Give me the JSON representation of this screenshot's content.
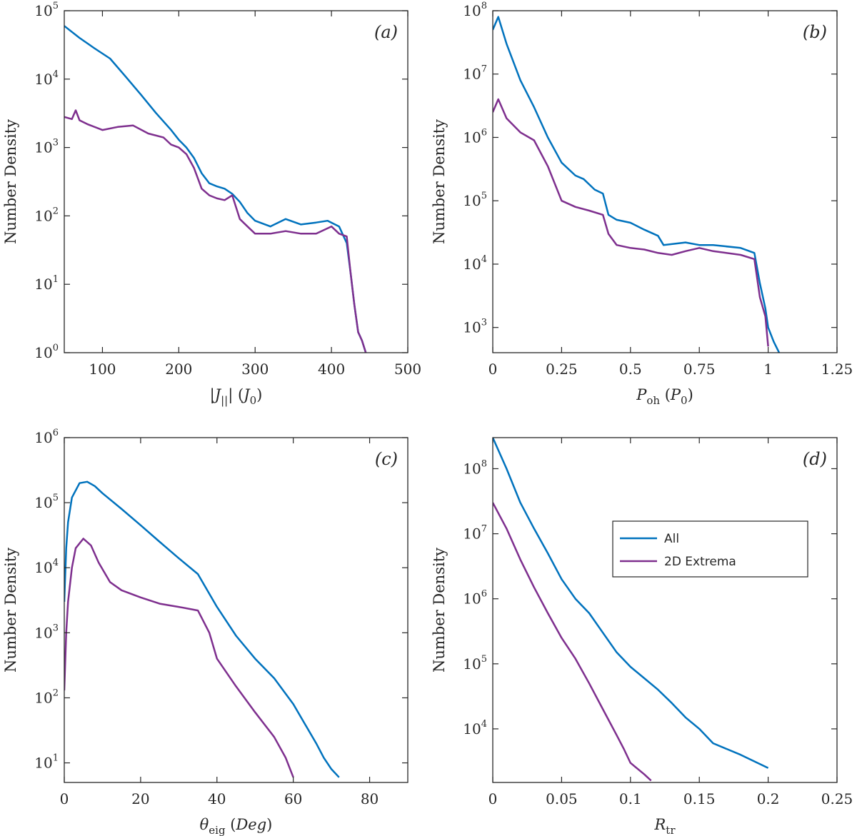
{
  "colors": {
    "all": "#0072bd",
    "extrema": "#7e2f8e",
    "axis": "#262626"
  },
  "legend": {
    "location": "upper-right of panel d",
    "entries": [
      "All",
      "2D Extrema"
    ]
  },
  "chart_data": [
    {
      "panel": "(a)",
      "type": "line",
      "ylabel": "Number Density",
      "xlabel_math": "|J_||| (J_0)",
      "xscale": "linear",
      "yscale": "log",
      "xlim": [
        50,
        500
      ],
      "ylim": [
        1,
        100000
      ],
      "xticks": [
        100,
        200,
        300,
        400,
        500
      ],
      "xtick_labels": [
        "100",
        "200",
        "300",
        "400",
        "500"
      ],
      "yticks": [
        1,
        10,
        100,
        1000,
        10000,
        100000
      ],
      "ytick_exponents": [
        "0",
        "1",
        "2",
        "3",
        "4",
        "5"
      ],
      "series": [
        {
          "name": "All",
          "x": [
            50,
            70,
            90,
            110,
            130,
            150,
            170,
            190,
            200,
            210,
            220,
            230,
            240,
            250,
            260,
            270,
            280,
            290,
            300,
            320,
            340,
            360,
            380,
            395,
            410,
            420,
            425,
            430,
            435,
            440,
            445
          ],
          "y": [
            60000,
            40000,
            28000,
            20000,
            11000,
            6000,
            3200,
            1800,
            1300,
            1000,
            700,
            420,
            300,
            270,
            250,
            210,
            160,
            110,
            85,
            70,
            90,
            75,
            80,
            85,
            70,
            40,
            15,
            5,
            2,
            1.5,
            1
          ]
        },
        {
          "name": "2D Extrema",
          "x": [
            50,
            60,
            65,
            70,
            80,
            100,
            120,
            140,
            160,
            180,
            190,
            200,
            210,
            220,
            230,
            240,
            250,
            260,
            270,
            280,
            290,
            300,
            320,
            340,
            360,
            380,
            400,
            410,
            420,
            425,
            430,
            435,
            440,
            445
          ],
          "y": [
            2800,
            2600,
            3500,
            2500,
            2200,
            1800,
            2000,
            2100,
            1600,
            1400,
            1100,
            1000,
            800,
            500,
            250,
            200,
            180,
            170,
            200,
            90,
            70,
            55,
            55,
            60,
            55,
            55,
            70,
            55,
            50,
            15,
            5,
            2,
            1.5,
            1
          ]
        }
      ]
    },
    {
      "panel": "(b)",
      "type": "line",
      "ylabel": "Number Density",
      "xlabel_math": "P_oh (P_0)",
      "xscale": "linear",
      "yscale": "log",
      "xlim": [
        0,
        1.25
      ],
      "ylim": [
        400,
        100000000
      ],
      "xticks": [
        0,
        0.25,
        0.5,
        0.75,
        1,
        1.25
      ],
      "xtick_labels": [
        "0",
        "0.25",
        "0.5",
        "0.75",
        "1",
        "1.25"
      ],
      "yticks": [
        1000,
        10000,
        100000,
        1000000,
        10000000,
        100000000
      ],
      "ytick_exponents": [
        "3",
        "4",
        "5",
        "6",
        "7",
        "8"
      ],
      "series": [
        {
          "name": "All",
          "x": [
            0,
            0.02,
            0.05,
            0.1,
            0.15,
            0.2,
            0.25,
            0.3,
            0.33,
            0.37,
            0.4,
            0.42,
            0.45,
            0.5,
            0.55,
            0.6,
            0.62,
            0.7,
            0.75,
            0.8,
            0.9,
            0.95,
            0.97,
            0.99,
            1.0,
            1.02,
            1.04
          ],
          "y": [
            50000000,
            80000000,
            30000000,
            8000000,
            3000000,
            1000000,
            400000,
            250000,
            220000,
            150000,
            130000,
            60000,
            50000,
            45000,
            35000,
            28000,
            20000,
            22000,
            20000,
            20000,
            18000,
            15000,
            5000,
            2000,
            1000,
            600,
            400
          ]
        },
        {
          "name": "2D Extrema",
          "x": [
            0,
            0.02,
            0.05,
            0.1,
            0.15,
            0.2,
            0.25,
            0.3,
            0.35,
            0.4,
            0.42,
            0.45,
            0.5,
            0.55,
            0.6,
            0.65,
            0.7,
            0.75,
            0.8,
            0.9,
            0.95,
            0.97,
            0.99,
            1.0
          ],
          "y": [
            2500000,
            4000000,
            2000000,
            1200000,
            900000,
            350000,
            100000,
            80000,
            70000,
            60000,
            30000,
            20000,
            18000,
            17000,
            15000,
            14000,
            16000,
            18000,
            16000,
            14000,
            12000,
            3000,
            1500,
            500
          ]
        }
      ]
    },
    {
      "panel": "(c)",
      "type": "line",
      "ylabel": "Number Density",
      "xlabel_math": "θ_eig (Deg)",
      "xscale": "linear",
      "yscale": "log",
      "xlim": [
        0,
        90
      ],
      "ylim": [
        5,
        1000000
      ],
      "xticks": [
        0,
        20,
        40,
        60,
        80
      ],
      "xtick_labels": [
        "0",
        "20",
        "40",
        "60",
        "80"
      ],
      "yticks": [
        10,
        100,
        1000,
        10000,
        100000,
        1000000
      ],
      "ytick_exponents": [
        "1",
        "2",
        "3",
        "4",
        "5",
        "6"
      ],
      "series": [
        {
          "name": "All",
          "x": [
            0,
            0.5,
            1,
            2,
            4,
            6,
            8,
            10,
            15,
            20,
            25,
            30,
            35,
            40,
            45,
            50,
            55,
            60,
            63,
            66,
            68,
            70,
            72
          ],
          "y": [
            3000,
            20000,
            50000,
            120000,
            200000,
            210000,
            180000,
            140000,
            80000,
            45000,
            25000,
            14000,
            8000,
            2500,
            900,
            400,
            200,
            80,
            40,
            20,
            12,
            8,
            6
          ]
        },
        {
          "name": "2D Extrema",
          "x": [
            0,
            0.5,
            1,
            2,
            3,
            5,
            7,
            9,
            12,
            15,
            20,
            25,
            30,
            35,
            38,
            40,
            45,
            50,
            55,
            58,
            60
          ],
          "y": [
            130,
            1000,
            3000,
            10000,
            20000,
            28000,
            22000,
            12000,
            6000,
            4500,
            3500,
            2800,
            2500,
            2200,
            1000,
            400,
            150,
            60,
            25,
            12,
            6
          ]
        }
      ]
    },
    {
      "panel": "(d)",
      "type": "line",
      "ylabel": "Number Density",
      "xlabel_math": "R_tr",
      "xscale": "linear",
      "yscale": "log",
      "xlim": [
        0,
        0.25
      ],
      "ylim": [
        1500,
        300000000
      ],
      "xticks": [
        0,
        0.05,
        0.1,
        0.15,
        0.2,
        0.25
      ],
      "xtick_labels": [
        "0",
        "0.05",
        "0.1",
        "0.15",
        "0.2",
        "0.25"
      ],
      "yticks": [
        10000,
        100000,
        1000000,
        10000000,
        100000000
      ],
      "ytick_exponents": [
        "4",
        "5",
        "6",
        "7",
        "8"
      ],
      "series": [
        {
          "name": "All",
          "x": [
            0,
            0.01,
            0.02,
            0.03,
            0.04,
            0.05,
            0.06,
            0.07,
            0.08,
            0.09,
            0.1,
            0.11,
            0.12,
            0.13,
            0.14,
            0.15,
            0.16,
            0.18,
            0.2
          ],
          "y": [
            300000000,
            100000000,
            30000000,
            12000000,
            5000000,
            2000000,
            1000000,
            600000,
            300000,
            150000,
            90000,
            60000,
            40000,
            25000,
            15000,
            10000,
            6000,
            4000,
            2500
          ]
        },
        {
          "name": "2D Extrema",
          "x": [
            0,
            0.01,
            0.02,
            0.03,
            0.04,
            0.05,
            0.06,
            0.07,
            0.08,
            0.09,
            0.095,
            0.1,
            0.11,
            0.115
          ],
          "y": [
            30000000,
            12000000,
            4000000,
            1500000,
            600000,
            250000,
            120000,
            50000,
            20000,
            8000,
            5000,
            3000,
            2000,
            1600
          ]
        }
      ]
    }
  ]
}
